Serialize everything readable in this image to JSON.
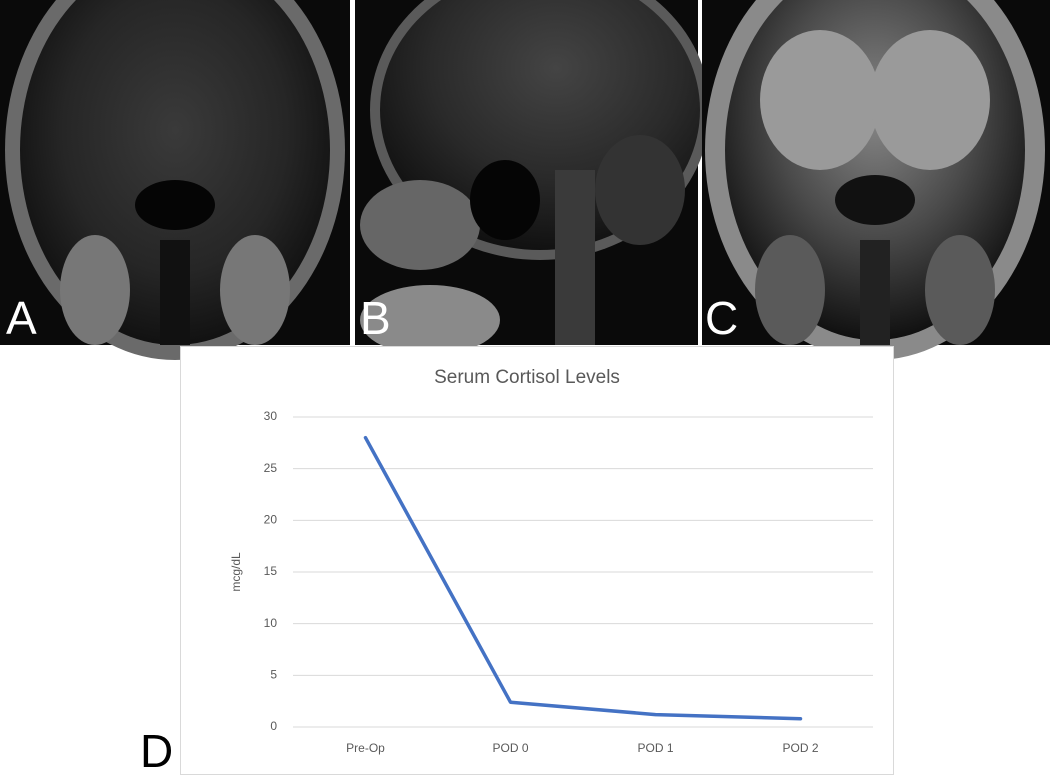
{
  "panel_labels": [
    "A",
    "B",
    "C",
    "D"
  ],
  "chart_data": {
    "type": "line",
    "title": "Serum Cortisol Levels",
    "y_label": "mcg/dL",
    "categories": [
      "Pre-Op",
      "POD 0",
      "POD 1",
      "POD 2"
    ],
    "values": [
      28,
      2.4,
      1.2,
      0.8
    ],
    "color": "#4472c4",
    "ylim": [
      0,
      30
    ],
    "yticks": [
      0,
      5,
      10,
      15,
      20,
      25,
      30
    ],
    "grid": true
  }
}
